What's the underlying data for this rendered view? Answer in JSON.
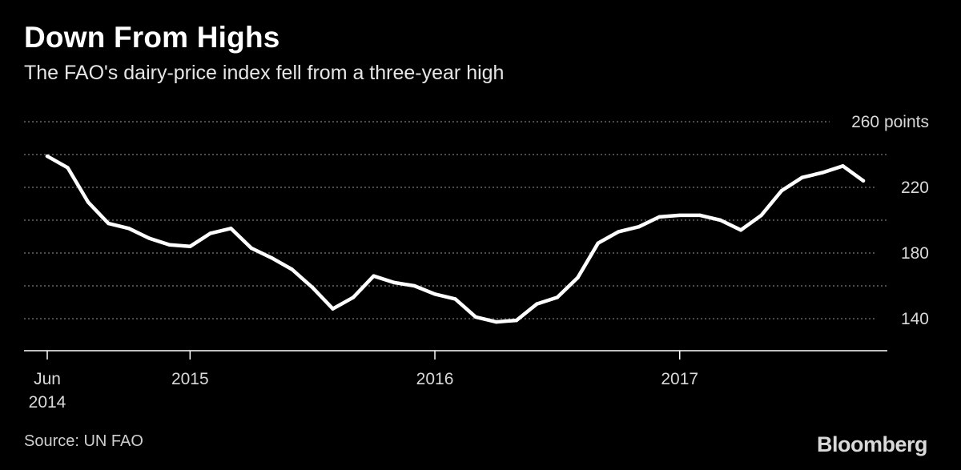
{
  "chart_data": {
    "type": "line",
    "title": "Down From Highs",
    "subtitle": "The FAO's dairy-price index fell from a three-year high",
    "ylabel": "points",
    "ylim": [
      120,
      260
    ],
    "y_ticks": [
      {
        "value": 260,
        "label": "260 points"
      },
      {
        "value": 240,
        "label": ""
      },
      {
        "value": 220,
        "label": "220"
      },
      {
        "value": 200,
        "label": ""
      },
      {
        "value": 180,
        "label": "180"
      },
      {
        "value": 160,
        "label": ""
      },
      {
        "value": 140,
        "label": "140"
      }
    ],
    "x_ticks": [
      {
        "month_index": 0,
        "label_line1": "Jun",
        "label_line2": "2014"
      },
      {
        "month_index": 7,
        "label_line1": "2015",
        "label_line2": ""
      },
      {
        "month_index": 19,
        "label_line1": "2016",
        "label_line2": ""
      },
      {
        "month_index": 31,
        "label_line1": "2017",
        "label_line2": ""
      }
    ],
    "series": [
      {
        "name": "FAO dairy-price index",
        "color": "#ffffff",
        "x_start": "Jun 2014",
        "values": [
          239,
          232,
          211,
          198,
          195,
          189,
          185,
          184,
          192,
          195,
          183,
          177,
          170,
          159,
          146,
          153,
          166,
          162,
          160,
          155,
          152,
          141,
          138,
          139,
          149,
          153,
          165,
          186,
          193,
          196,
          202,
          203,
          203,
          200,
          194,
          203,
          218,
          226,
          229,
          233,
          224
        ]
      }
    ]
  },
  "footer": {
    "source": "Source: UN FAO",
    "brand": "Bloomberg"
  },
  "colors": {
    "background": "#000000",
    "line": "#ffffff",
    "grid": "#7a7a7a"
  }
}
